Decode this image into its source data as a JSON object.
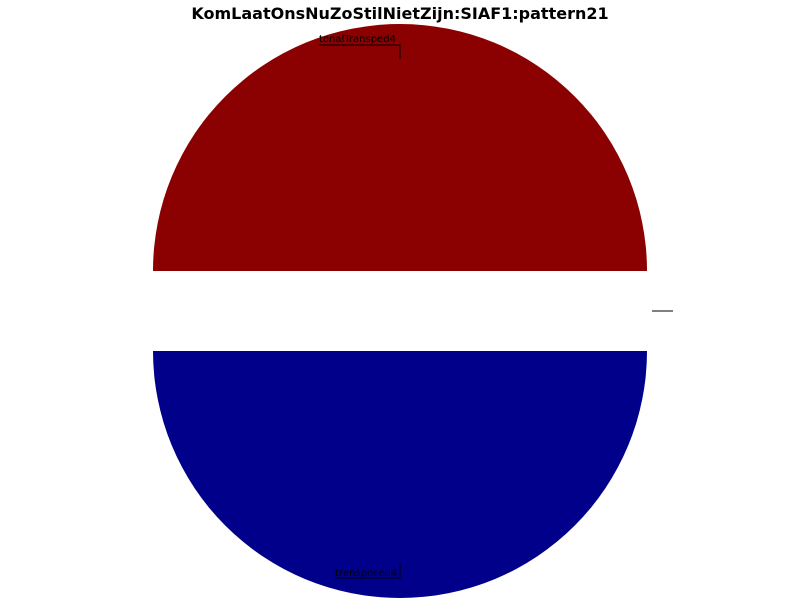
{
  "chart_data": {
    "type": "pie",
    "title": "KomLaatOnsNuZoStilNietZijn:SIAF1:pattern21",
    "slices": [
      {
        "label": "tonalTransped4",
        "value": 50,
        "color": "#8b0000"
      },
      {
        "label": "",
        "value": 0,
        "color": "#ffffff"
      },
      {
        "label": "transposed4",
        "value": 50,
        "color": "#00008b"
      }
    ],
    "legend": "none"
  }
}
